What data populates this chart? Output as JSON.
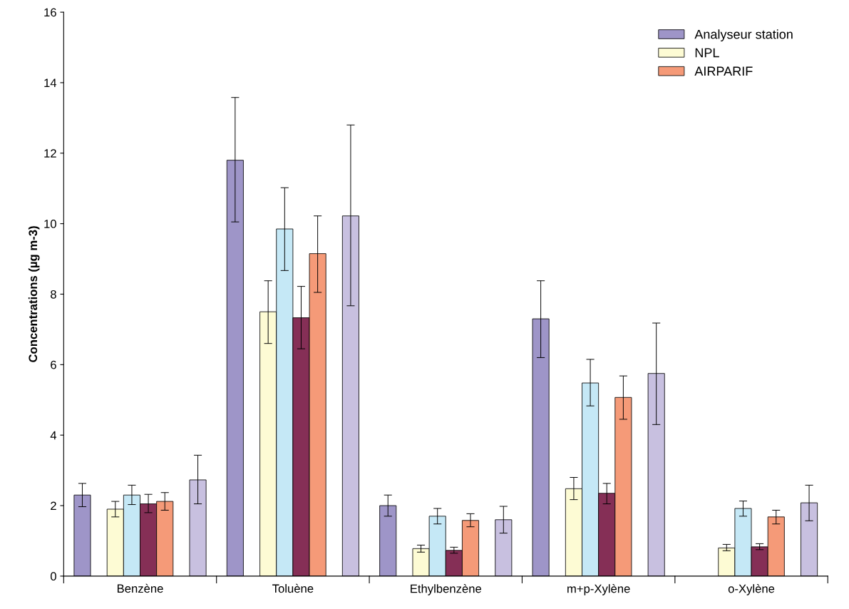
{
  "chart_data": {
    "type": "bar",
    "ylabel": "Concentrations (µg m-3)",
    "categories": [
      "Benzène",
      "Toluène",
      "Ethylbenzène",
      "m+p-Xylène",
      "o-Xylène"
    ],
    "ylim": [
      0,
      16
    ],
    "yticks": [
      0,
      2,
      4,
      6,
      8,
      10,
      12,
      14,
      16
    ],
    "grid": false,
    "legend": "top right",
    "series": [
      {
        "name": "Analyseur station",
        "color": "#9e95c8",
        "values": [
          2.3,
          11.8,
          2.0,
          7.3,
          null
        ],
        "errors": [
          [
            1.97,
            2.63
          ],
          [
            10.05,
            13.58
          ],
          [
            1.7,
            2.3
          ],
          [
            6.2,
            8.38
          ],
          null
        ]
      },
      {
        "name": "NPL",
        "color": "#fdfbd4",
        "values": [
          1.9,
          7.5,
          0.78,
          2.48,
          0.8
        ],
        "errors": [
          [
            1.68,
            2.12
          ],
          [
            6.6,
            8.38
          ],
          [
            0.68,
            0.88
          ],
          [
            2.17,
            2.8
          ],
          [
            0.72,
            0.9
          ]
        ]
      },
      {
        "color": "#c5e8f6",
        "values": [
          2.3,
          9.85,
          1.7,
          5.48,
          1.92
        ],
        "errors": [
          [
            2.03,
            2.58
          ],
          [
            8.67,
            11.02
          ],
          [
            1.48,
            1.92
          ],
          [
            4.83,
            6.15
          ],
          [
            1.7,
            2.13
          ]
        ]
      },
      {
        "color": "#852f56",
        "values": [
          2.05,
          7.33,
          0.73,
          2.35,
          0.83
        ],
        "errors": [
          [
            1.8,
            2.32
          ],
          [
            6.45,
            8.22
          ],
          [
            0.65,
            0.82
          ],
          [
            2.05,
            2.63
          ],
          [
            0.75,
            0.92
          ]
        ]
      },
      {
        "name": "AIRPARIF",
        "color": "#f59a78",
        "values": [
          2.12,
          9.15,
          1.58,
          5.07,
          1.68
        ],
        "errors": [
          [
            1.87,
            2.37
          ],
          [
            8.05,
            10.22
          ],
          [
            1.4,
            1.77
          ],
          [
            4.45,
            5.68
          ],
          [
            1.48,
            1.87
          ]
        ]
      },
      {
        "color": "#c8c0e0",
        "values": [
          2.73,
          10.22,
          1.6,
          5.75,
          2.08
        ],
        "errors": [
          [
            2.05,
            3.43
          ],
          [
            7.67,
            12.8
          ],
          [
            1.22,
            1.98
          ],
          [
            4.3,
            7.18
          ],
          [
            1.57,
            2.58
          ]
        ]
      }
    ]
  }
}
